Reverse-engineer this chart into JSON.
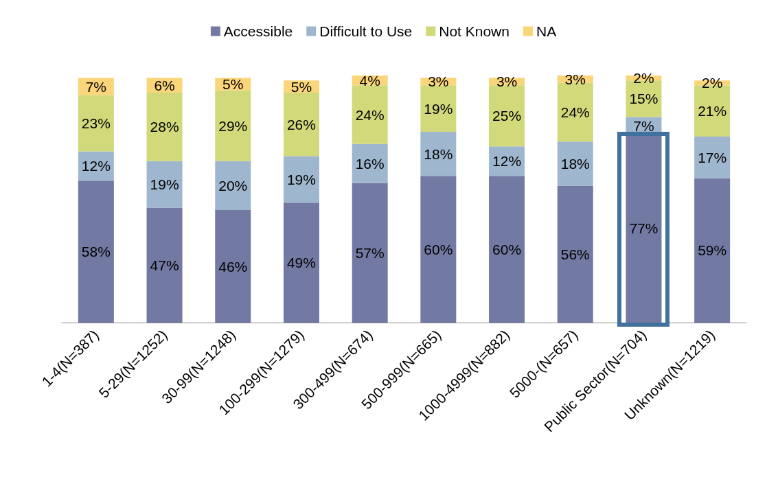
{
  "chart_data": {
    "type": "bar",
    "stacked": true,
    "legend": "top",
    "categories": [
      "1-4(N=387)",
      "5-29(N=1252)",
      "30-99(N=1248)",
      "100-299(N=1279)",
      "300-499(N=674)",
      "500-999(N=665)",
      "1000-4999(N=882)",
      "5000-(N=657)",
      "Public Sector(N=704)",
      "Unknown(N=1219)"
    ],
    "series": [
      {
        "name": "Accessible",
        "color": "#7279a3",
        "values": [
          58,
          47,
          46,
          49,
          57,
          60,
          60,
          56,
          77,
          59
        ],
        "value_labels": [
          "58%",
          "47%",
          "46%",
          "49%",
          "57%",
          "60%",
          "60%",
          "56%",
          "77%",
          "59%"
        ]
      },
      {
        "name": "Difficult to Use",
        "color": "#9fb6cf",
        "values": [
          12,
          19,
          20,
          19,
          16,
          18,
          12,
          18,
          7,
          17
        ],
        "value_labels": [
          "12%",
          "19%",
          "20%",
          "19%",
          "16%",
          "18%",
          "12%",
          "18%",
          "7%",
          "17%"
        ]
      },
      {
        "name": "Not Known",
        "color": "#d1d97a",
        "values": [
          23,
          28,
          29,
          26,
          24,
          19,
          25,
          24,
          15,
          21
        ],
        "value_labels": [
          "23%",
          "28%",
          "29%",
          "26%",
          "24%",
          "19%",
          "25%",
          "24%",
          "15%",
          "21%"
        ]
      },
      {
        "name": "NA",
        "color": "#fbd57a",
        "values": [
          7,
          6,
          5,
          5,
          4,
          3,
          3,
          3,
          2,
          2
        ],
        "value_labels": [
          "7%",
          "6%",
          "5%",
          "5%",
          "4%",
          "3%",
          "3%",
          "3%",
          "2%",
          "2%"
        ]
      }
    ]
  }
}
